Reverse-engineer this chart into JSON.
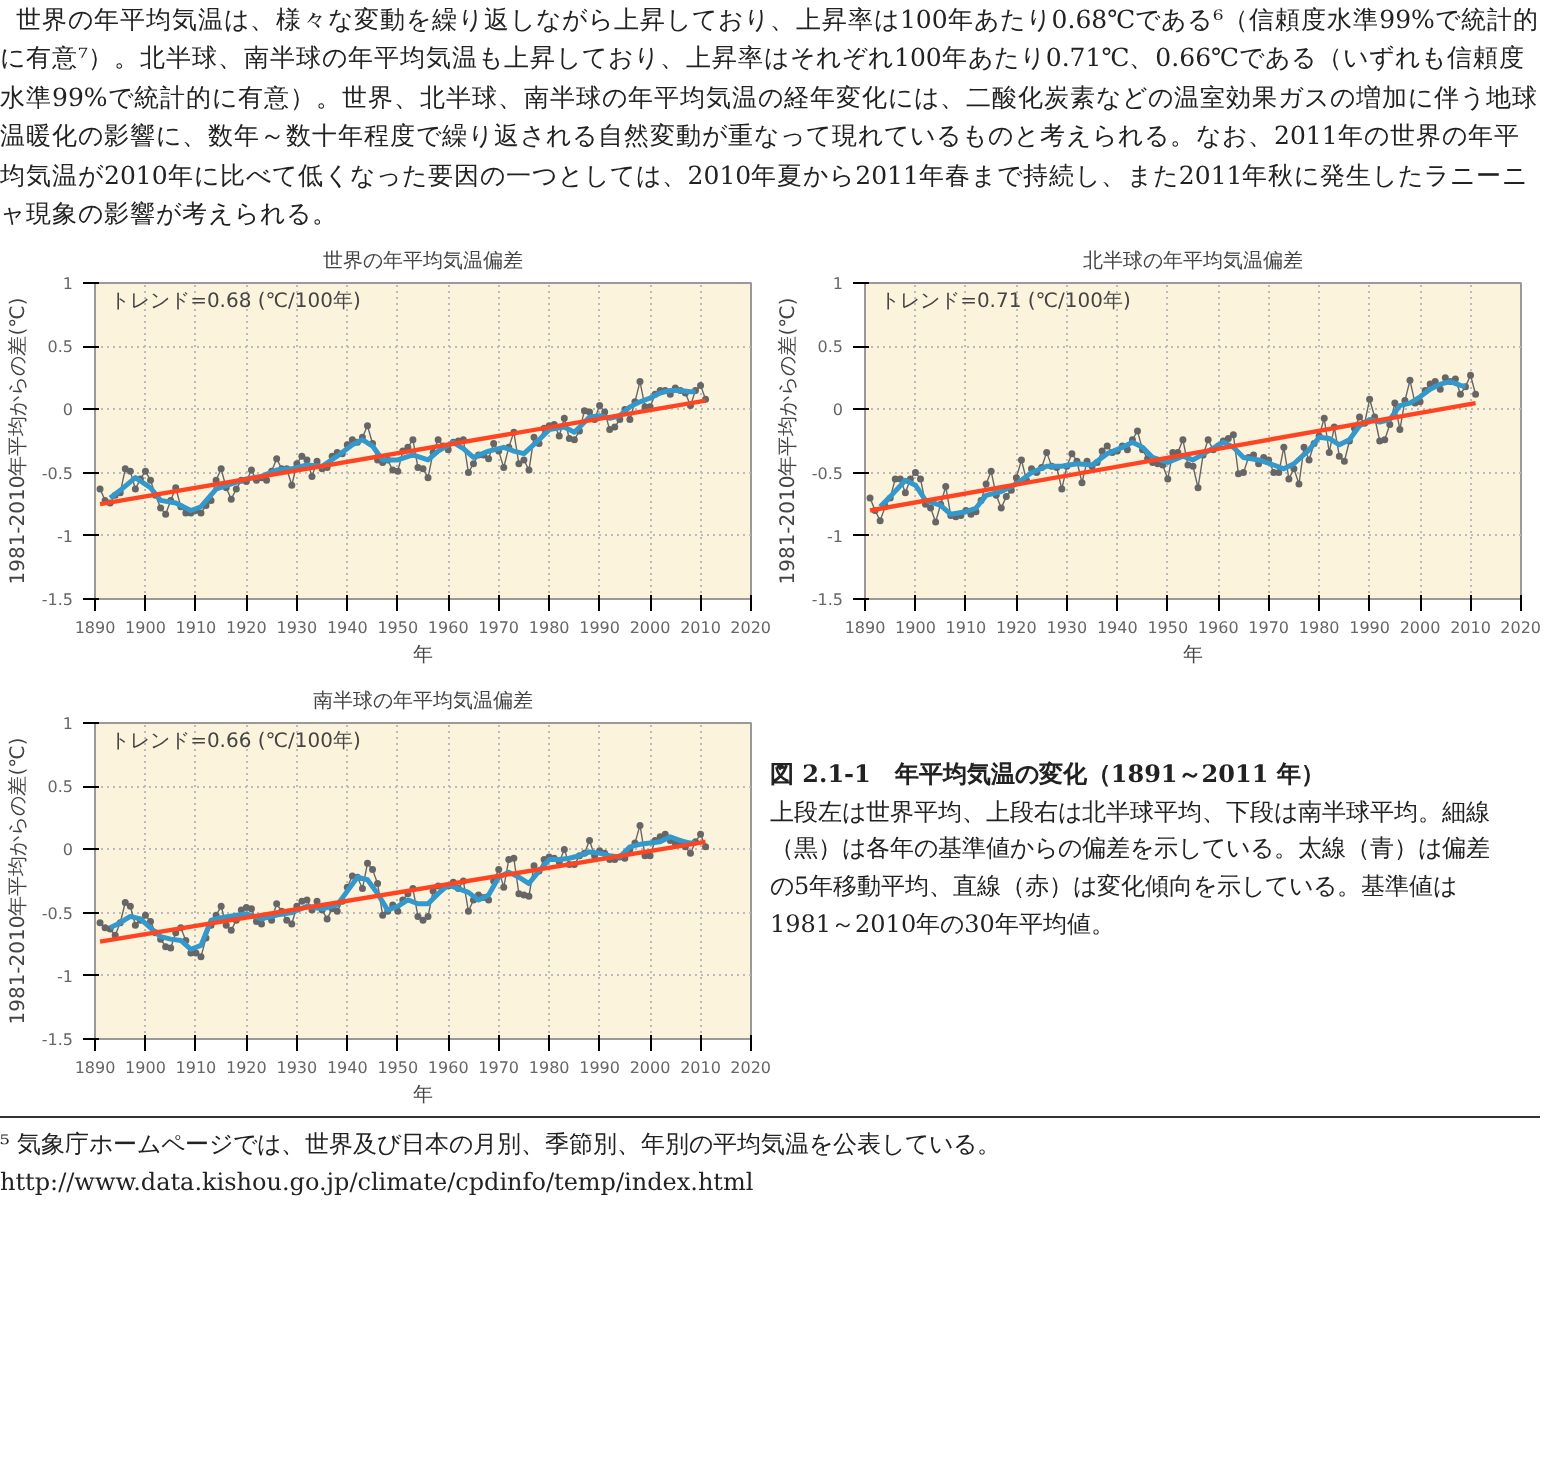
{
  "chart_data": [
    {
      "type": "line",
      "title": "世界の年平均気温偏差",
      "xlabel": "年",
      "ylabel": "1981-2010年平均からの差(℃)",
      "xlim": [
        1890,
        2020
      ],
      "ylim": [
        -1.5,
        1
      ],
      "xticks": [
        1890,
        1900,
        1910,
        1920,
        1930,
        1940,
        1950,
        1960,
        1970,
        1980,
        1990,
        2000,
        2010,
        2020
      ],
      "yticks": [
        -1.5,
        -1,
        -0.5,
        0,
        0.5,
        1
      ],
      "grid": true,
      "annotations": [
        "トレンド=0.68 (℃/100年)",
        "世界の年平均気温は、様々な変動を繰り返しながら上昇しており、上昇率は100年あたり0.68℃である⁶（信頼度水準99%で統計的に有意⁷）。北半球、南半球の年平均気温も上昇しており、上昇率はそれぞれ100年あたり0.71℃、0.66℃である（いずれも信頼度水準99%で統計的に有意）。世界、北半球、南半球の年平均気温の経年変化には、二酸化炭素などの温室効果ガスの増加に伴う地球温暖化の影響に、数年～数十年程度で繰り返される自然変動が重なって現れているものと考えられる。なお、2011年の世界の年平均気温が2010年に比べて低くなった要因の一つとしては、2010年夏から2011年春まで持続し、また2011年秋に発生したラニーニャ現象の影響が考えられる。"
      ],
      "series": [
        {
          "color": "#666666",
          "marker": "circle",
          "x": [
            1891,
            1892,
            1893,
            1894,
            1895,
            1896,
            1897,
            1898,
            1899,
            1900,
            1901,
            1902,
            1903,
            1904,
            1905,
            1906,
            1907,
            1908,
            1909,
            1910,
            1911,
            1912,
            1913,
            1914,
            1915,
            1916,
            1917,
            1918,
            1919,
            1920,
            1921,
            1922,
            1923,
            1924,
            1925,
            1926,
            1927,
            1928,
            1929,
            1930,
            1931,
            1932,
            1933,
            1934,
            1935,
            1936,
            1937,
            1938,
            1939,
            1940,
            1941,
            1942,
            1943,
            1944,
            1945,
            1946,
            1947,
            1948,
            1949,
            1950,
            1951,
            1952,
            1953,
            1954,
            1955,
            1956,
            1957,
            1958,
            1959,
            1960,
            1961,
            1962,
            1963,
            1964,
            1965,
            1966,
            1967,
            1968,
            1969,
            1970,
            1971,
            1972,
            1973,
            1974,
            1975,
            1976,
            1977,
            1978,
            1979,
            1980,
            1981,
            1982,
            1983,
            1984,
            1985,
            1986,
            1987,
            1988,
            1989,
            1990,
            1991,
            1992,
            1993,
            1994,
            1995,
            1996,
            1997,
            1998,
            1999,
            2000,
            2001,
            2002,
            2003,
            2004,
            2005,
            2006,
            2007,
            2008,
            2009,
            2010,
            2011
          ],
          "values": [
            -0.63,
            -0.72,
            -0.74,
            -0.68,
            -0.66,
            -0.47,
            -0.49,
            -0.63,
            -0.55,
            -0.49,
            -0.56,
            -0.68,
            -0.78,
            -0.83,
            -0.72,
            -0.62,
            -0.77,
            -0.82,
            -0.82,
            -0.8,
            -0.82,
            -0.76,
            -0.72,
            -0.56,
            -0.47,
            -0.62,
            -0.71,
            -0.63,
            -0.56,
            -0.57,
            -0.48,
            -0.56,
            -0.54,
            -0.56,
            -0.49,
            -0.39,
            -0.47,
            -0.47,
            -0.6,
            -0.43,
            -0.37,
            -0.4,
            -0.53,
            -0.41,
            -0.47,
            -0.46,
            -0.37,
            -0.34,
            -0.35,
            -0.28,
            -0.24,
            -0.26,
            -0.22,
            -0.13,
            -0.27,
            -0.4,
            -0.42,
            -0.4,
            -0.48,
            -0.49,
            -0.33,
            -0.3,
            -0.24,
            -0.46,
            -0.47,
            -0.54,
            -0.34,
            -0.24,
            -0.29,
            -0.32,
            -0.26,
            -0.25,
            -0.24,
            -0.5,
            -0.43,
            -0.36,
            -0.36,
            -0.39,
            -0.27,
            -0.33,
            -0.46,
            -0.3,
            -0.18,
            -0.43,
            -0.4,
            -0.48,
            -0.22,
            -0.27,
            -0.15,
            -0.13,
            -0.12,
            -0.21,
            -0.07,
            -0.23,
            -0.24,
            -0.17,
            -0.01,
            -0.02,
            -0.08,
            0.03,
            -0.02,
            -0.16,
            -0.14,
            -0.08,
            0.0,
            -0.08,
            0.06,
            0.22,
            0.02,
            0.02,
            0.12,
            0.15,
            0.15,
            0.12,
            0.17,
            0.15,
            0.13,
            0.03,
            0.15,
            0.19,
            0.08
          ]
        },
        {
          "color": "#3399cc",
          "x": [
            1893,
            1895,
            1898,
            1901,
            1903,
            1906,
            1909,
            1911,
            1914,
            1917,
            1920,
            1923,
            1926,
            1929,
            1932,
            1935,
            1938,
            1941,
            1943,
            1945,
            1947,
            1950,
            1953,
            1956,
            1958,
            1961,
            1963,
            1965,
            1968,
            1971,
            1973,
            1975,
            1978,
            1980,
            1983,
            1985,
            1988,
            1990,
            1992,
            1994,
            1996,
            1998,
            2000,
            2002,
            2004,
            2006,
            2008,
            2009
          ],
          "values": [
            -0.7,
            -0.64,
            -0.54,
            -0.62,
            -0.72,
            -0.74,
            -0.8,
            -0.77,
            -0.63,
            -0.59,
            -0.55,
            -0.53,
            -0.48,
            -0.47,
            -0.44,
            -0.45,
            -0.37,
            -0.28,
            -0.24,
            -0.29,
            -0.4,
            -0.4,
            -0.36,
            -0.4,
            -0.33,
            -0.26,
            -0.31,
            -0.38,
            -0.33,
            -0.3,
            -0.33,
            -0.35,
            -0.24,
            -0.16,
            -0.14,
            -0.18,
            -0.06,
            -0.05,
            -0.07,
            -0.05,
            0.02,
            0.06,
            0.09,
            0.13,
            0.15,
            0.15,
            0.14,
            0.14
          ]
        },
        {
          "color": "#ff4422",
          "x": [
            1891,
            2011
          ],
          "values": [
            -0.75,
            0.07
          ]
        }
      ]
    },
    {
      "type": "line",
      "title": "北半球の年平均気温偏差",
      "xlabel": "年",
      "ylabel": "1981-2010年平均からの差(℃)",
      "xlim": [
        1890,
        2020
      ],
      "ylim": [
        -1.5,
        1
      ],
      "xticks": [
        1890,
        1900,
        1910,
        1920,
        1930,
        1940,
        1950,
        1960,
        1970,
        1980,
        1990,
        2000,
        2010,
        2020
      ],
      "yticks": [
        -1.5,
        -1,
        -0.5,
        0,
        0.5,
        1
      ],
      "grid": true,
      "annotations": [
        "トレンド=0.71 (℃/100年)"
      ],
      "series": [
        {
          "color": "#666666",
          "marker": "circle",
          "x": [
            1891,
            1892,
            1893,
            1894,
            1895,
            1896,
            1897,
            1898,
            1899,
            1900,
            1901,
            1902,
            1903,
            1904,
            1905,
            1906,
            1907,
            1908,
            1909,
            1910,
            1911,
            1912,
            1913,
            1914,
            1915,
            1916,
            1917,
            1918,
            1919,
            1920,
            1921,
            1922,
            1923,
            1924,
            1925,
            1926,
            1927,
            1928,
            1929,
            1930,
            1931,
            1932,
            1933,
            1934,
            1935,
            1936,
            1937,
            1938,
            1939,
            1940,
            1941,
            1942,
            1943,
            1944,
            1945,
            1946,
            1947,
            1948,
            1949,
            1950,
            1951,
            1952,
            1953,
            1954,
            1955,
            1956,
            1957,
            1958,
            1959,
            1960,
            1961,
            1962,
            1963,
            1964,
            1965,
            1966,
            1967,
            1968,
            1969,
            1970,
            1971,
            1972,
            1973,
            1974,
            1975,
            1976,
            1977,
            1978,
            1979,
            1980,
            1981,
            1982,
            1983,
            1984,
            1985,
            1986,
            1987,
            1988,
            1989,
            1990,
            1991,
            1992,
            1993,
            1994,
            1995,
            1996,
            1997,
            1998,
            1999,
            2000,
            2001,
            2002,
            2003,
            2004,
            2005,
            2006,
            2007,
            2008,
            2009,
            2010,
            2011
          ],
          "values": [
            -0.7,
            -0.8,
            -0.88,
            -0.77,
            -0.7,
            -0.55,
            -0.55,
            -0.66,
            -0.55,
            -0.5,
            -0.55,
            -0.75,
            -0.78,
            -0.89,
            -0.75,
            -0.61,
            -0.84,
            -0.85,
            -0.84,
            -0.8,
            -0.83,
            -0.81,
            -0.72,
            -0.59,
            -0.49,
            -0.68,
            -0.78,
            -0.69,
            -0.64,
            -0.54,
            -0.4,
            -0.56,
            -0.47,
            -0.5,
            -0.46,
            -0.34,
            -0.45,
            -0.46,
            -0.63,
            -0.45,
            -0.35,
            -0.41,
            -0.58,
            -0.41,
            -0.45,
            -0.42,
            -0.33,
            -0.29,
            -0.34,
            -0.33,
            -0.29,
            -0.32,
            -0.24,
            -0.17,
            -0.32,
            -0.39,
            -0.42,
            -0.43,
            -0.44,
            -0.55,
            -0.34,
            -0.34,
            -0.24,
            -0.44,
            -0.45,
            -0.62,
            -0.36,
            -0.24,
            -0.32,
            -0.29,
            -0.25,
            -0.23,
            -0.2,
            -0.51,
            -0.5,
            -0.38,
            -0.36,
            -0.43,
            -0.38,
            -0.4,
            -0.5,
            -0.5,
            -0.3,
            -0.55,
            -0.47,
            -0.59,
            -0.3,
            -0.4,
            -0.27,
            -0.21,
            -0.07,
            -0.34,
            -0.14,
            -0.37,
            -0.41,
            -0.25,
            -0.15,
            -0.06,
            -0.11,
            0.08,
            -0.06,
            -0.25,
            -0.24,
            -0.12,
            0.05,
            -0.16,
            0.07,
            0.23,
            0.05,
            0.06,
            0.15,
            0.2,
            0.22,
            0.16,
            0.25,
            0.22,
            0.24,
            0.12,
            0.18,
            0.27,
            0.12
          ]
        },
        {
          "color": "#3399cc",
          "x": [
            1893,
            1895,
            1898,
            1900,
            1902,
            1905,
            1907,
            1910,
            1912,
            1914,
            1917,
            1920,
            1923,
            1926,
            1929,
            1932,
            1935,
            1938,
            1941,
            1943,
            1945,
            1947,
            1950,
            1953,
            1955,
            1958,
            1961,
            1963,
            1965,
            1968,
            1971,
            1973,
            1975,
            1978,
            1980,
            1982,
            1984,
            1986,
            1988,
            1990,
            1992,
            1994,
            1996,
            1998,
            2000,
            2002,
            2004,
            2006,
            2008,
            2009
          ],
          "values": [
            -0.77,
            -0.69,
            -0.56,
            -0.6,
            -0.72,
            -0.76,
            -0.83,
            -0.81,
            -0.78,
            -0.68,
            -0.65,
            -0.59,
            -0.5,
            -0.45,
            -0.45,
            -0.43,
            -0.44,
            -0.35,
            -0.3,
            -0.26,
            -0.3,
            -0.38,
            -0.42,
            -0.37,
            -0.4,
            -0.33,
            -0.26,
            -0.3,
            -0.38,
            -0.4,
            -0.44,
            -0.47,
            -0.43,
            -0.32,
            -0.22,
            -0.23,
            -0.28,
            -0.24,
            -0.13,
            -0.08,
            -0.1,
            -0.08,
            0.03,
            0.05,
            0.1,
            0.16,
            0.2,
            0.22,
            0.19,
            0.18
          ]
        },
        {
          "color": "#ff4422",
          "x": [
            1891,
            2011
          ],
          "values": [
            -0.8,
            0.05
          ]
        }
      ]
    },
    {
      "type": "line",
      "title": "南半球の年平均気温偏差",
      "xlabel": "年",
      "ylabel": "1981-2010年平均からの差(℃)",
      "xlim": [
        1890,
        2020
      ],
      "ylim": [
        -1.5,
        1
      ],
      "xticks": [
        1890,
        1900,
        1910,
        1920,
        1930,
        1940,
        1950,
        1960,
        1970,
        1980,
        1990,
        2000,
        2010,
        2020
      ],
      "yticks": [
        -1.5,
        -1,
        -0.5,
        0,
        0.5,
        1
      ],
      "grid": true,
      "annotations": [
        "トレンド=0.66 (℃/100年)",
        "図 2.1-1　年平均気温の変化（1891～2011 年）",
        "上段左は世界平均、上段右は北半球平均、下段は南半球平均。細線（黒）は各年の基準値からの偏差を示している。太線（青）は偏差の5年移動平均、直線（赤）は変化傾向を示している。基準値は1981～2010年の30年平均値。",
        "⁵ 気象庁ホームページでは、世界及び日本の月別、季節別、年別の平均気温を公表している。",
        "http://www.data.kishou.go.jp/climate/cpdinfo/temp/index.html"
      ],
      "series": [
        {
          "color": "#666666",
          "marker": "circle",
          "x": [
            1891,
            1892,
            1893,
            1894,
            1895,
            1896,
            1897,
            1898,
            1899,
            1900,
            1901,
            1902,
            1903,
            1904,
            1905,
            1906,
            1907,
            1908,
            1909,
            1910,
            1911,
            1912,
            1913,
            1914,
            1915,
            1916,
            1917,
            1918,
            1919,
            1920,
            1921,
            1922,
            1923,
            1924,
            1925,
            1926,
            1927,
            1928,
            1929,
            1930,
            1931,
            1932,
            1933,
            1934,
            1935,
            1936,
            1937,
            1938,
            1939,
            1940,
            1941,
            1942,
            1943,
            1944,
            1945,
            1946,
            1947,
            1948,
            1949,
            1950,
            1951,
            1952,
            1953,
            1954,
            1955,
            1956,
            1957,
            1958,
            1959,
            1960,
            1961,
            1962,
            1963,
            1964,
            1965,
            1966,
            1967,
            1968,
            1969,
            1970,
            1971,
            1972,
            1973,
            1974,
            1975,
            1976,
            1977,
            1978,
            1979,
            1980,
            1981,
            1982,
            1983,
            1984,
            1985,
            1986,
            1987,
            1988,
            1989,
            1990,
            1991,
            1992,
            1993,
            1994,
            1995,
            1996,
            1997,
            1998,
            1999,
            2000,
            2001,
            2002,
            2003,
            2004,
            2005,
            2006,
            2007,
            2008,
            2009,
            2010,
            2011
          ],
          "values": [
            -0.58,
            -0.62,
            -0.63,
            -0.68,
            -0.58,
            -0.42,
            -0.45,
            -0.6,
            -0.56,
            -0.52,
            -0.57,
            -0.66,
            -0.71,
            -0.77,
            -0.78,
            -0.66,
            -0.62,
            -0.72,
            -0.82,
            -0.82,
            -0.85,
            -0.7,
            -0.6,
            -0.52,
            -0.45,
            -0.6,
            -0.64,
            -0.56,
            -0.48,
            -0.46,
            -0.47,
            -0.57,
            -0.59,
            -0.53,
            -0.56,
            -0.43,
            -0.49,
            -0.56,
            -0.59,
            -0.45,
            -0.41,
            -0.4,
            -0.48,
            -0.41,
            -0.48,
            -0.55,
            -0.47,
            -0.49,
            -0.41,
            -0.3,
            -0.21,
            -0.22,
            -0.31,
            -0.11,
            -0.16,
            -0.27,
            -0.52,
            -0.49,
            -0.44,
            -0.49,
            -0.4,
            -0.35,
            -0.31,
            -0.53,
            -0.56,
            -0.53,
            -0.33,
            -0.29,
            -0.3,
            -0.29,
            -0.26,
            -0.31,
            -0.25,
            -0.49,
            -0.4,
            -0.36,
            -0.38,
            -0.4,
            -0.25,
            -0.16,
            -0.3,
            -0.08,
            -0.07,
            -0.35,
            -0.36,
            -0.37,
            -0.13,
            -0.17,
            -0.08,
            -0.06,
            -0.07,
            -0.1,
            0.0,
            -0.12,
            -0.12,
            -0.05,
            -0.03,
            0.07,
            -0.05,
            -0.01,
            -0.03,
            -0.08,
            -0.08,
            -0.06,
            -0.07,
            0.0,
            0.05,
            0.19,
            -0.05,
            -0.05,
            0.07,
            0.1,
            0.12,
            0.07,
            0.05,
            0.06,
            0.02,
            -0.03,
            0.06,
            0.12,
            0.02
          ]
        },
        {
          "color": "#3399cc",
          "x": [
            1893,
            1895,
            1897,
            1899,
            1901,
            1903,
            1905,
            1907,
            1909,
            1911,
            1913,
            1915,
            1918,
            1920,
            1923,
            1926,
            1929,
            1932,
            1935,
            1938,
            1940,
            1942,
            1944,
            1946,
            1948,
            1950,
            1952,
            1954,
            1956,
            1958,
            1960,
            1962,
            1964,
            1966,
            1968,
            1970,
            1972,
            1974,
            1976,
            1978,
            1980,
            1982,
            1984,
            1986,
            1988,
            1990,
            1992,
            1994,
            1996,
            1998,
            2000,
            2002,
            2004,
            2006,
            2008,
            2009
          ],
          "values": [
            -0.62,
            -0.58,
            -0.53,
            -0.55,
            -0.62,
            -0.69,
            -0.71,
            -0.72,
            -0.79,
            -0.76,
            -0.56,
            -0.54,
            -0.52,
            -0.51,
            -0.55,
            -0.52,
            -0.5,
            -0.45,
            -0.47,
            -0.44,
            -0.33,
            -0.22,
            -0.24,
            -0.35,
            -0.48,
            -0.45,
            -0.4,
            -0.43,
            -0.43,
            -0.35,
            -0.28,
            -0.31,
            -0.34,
            -0.4,
            -0.36,
            -0.22,
            -0.18,
            -0.22,
            -0.27,
            -0.17,
            -0.08,
            -0.08,
            -0.07,
            -0.05,
            -0.02,
            -0.03,
            -0.05,
            -0.06,
            0.02,
            0.04,
            0.05,
            0.06,
            0.1,
            0.07,
            0.05,
            0.05
          ]
        },
        {
          "color": "#ff4422",
          "x": [
            1891,
            2011
          ],
          "values": [
            -0.73,
            0.06
          ]
        }
      ]
    }
  ]
}
